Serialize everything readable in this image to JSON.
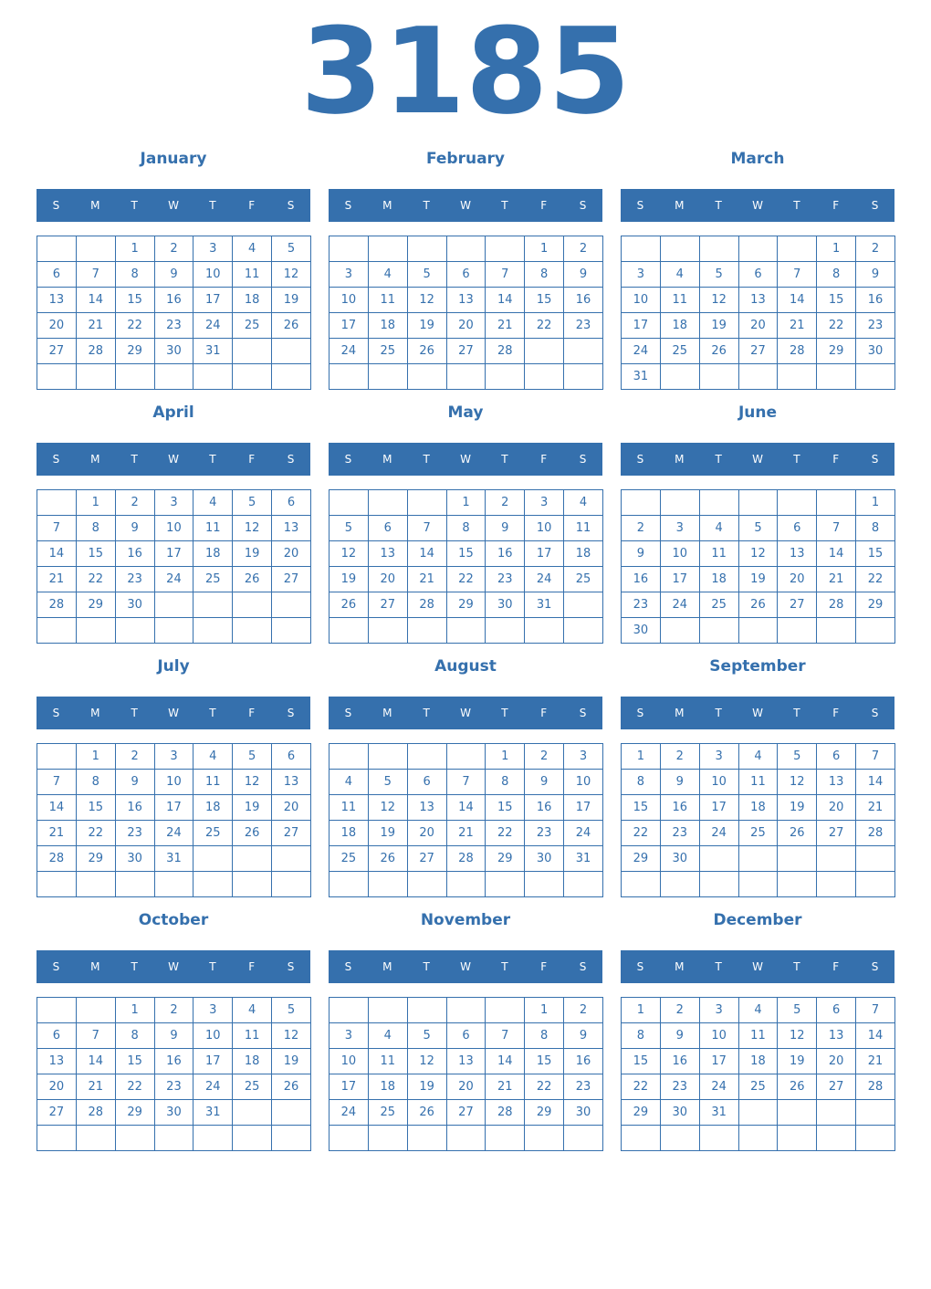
{
  "year": "3185",
  "weekdays": [
    "S",
    "M",
    "T",
    "W",
    "T",
    "F",
    "S"
  ],
  "colors": {
    "accent": "#3570ad"
  },
  "months": [
    {
      "name": "January",
      "weeks": [
        [
          null,
          null,
          1,
          2,
          3,
          4,
          5
        ],
        [
          6,
          7,
          8,
          9,
          10,
          11,
          12
        ],
        [
          13,
          14,
          15,
          16,
          17,
          18,
          19
        ],
        [
          20,
          21,
          22,
          23,
          24,
          25,
          26
        ],
        [
          27,
          28,
          29,
          30,
          31,
          null,
          null
        ],
        [
          null,
          null,
          null,
          null,
          null,
          null,
          null
        ]
      ]
    },
    {
      "name": "February",
      "weeks": [
        [
          null,
          null,
          null,
          null,
          null,
          1,
          2
        ],
        [
          3,
          4,
          5,
          6,
          7,
          8,
          9
        ],
        [
          10,
          11,
          12,
          13,
          14,
          15,
          16
        ],
        [
          17,
          18,
          19,
          20,
          21,
          22,
          23
        ],
        [
          24,
          25,
          26,
          27,
          28,
          null,
          null
        ],
        [
          null,
          null,
          null,
          null,
          null,
          null,
          null
        ]
      ]
    },
    {
      "name": "March",
      "weeks": [
        [
          null,
          null,
          null,
          null,
          null,
          1,
          2
        ],
        [
          3,
          4,
          5,
          6,
          7,
          8,
          9
        ],
        [
          10,
          11,
          12,
          13,
          14,
          15,
          16
        ],
        [
          17,
          18,
          19,
          20,
          21,
          22,
          23
        ],
        [
          24,
          25,
          26,
          27,
          28,
          29,
          30
        ],
        [
          31,
          null,
          null,
          null,
          null,
          null,
          null
        ]
      ]
    },
    {
      "name": "April",
      "weeks": [
        [
          null,
          1,
          2,
          3,
          4,
          5,
          6
        ],
        [
          7,
          8,
          9,
          10,
          11,
          12,
          13
        ],
        [
          14,
          15,
          16,
          17,
          18,
          19,
          20
        ],
        [
          21,
          22,
          23,
          24,
          25,
          26,
          27
        ],
        [
          28,
          29,
          30,
          null,
          null,
          null,
          null
        ],
        [
          null,
          null,
          null,
          null,
          null,
          null,
          null
        ]
      ]
    },
    {
      "name": "May",
      "weeks": [
        [
          null,
          null,
          null,
          1,
          2,
          3,
          4
        ],
        [
          5,
          6,
          7,
          8,
          9,
          10,
          11
        ],
        [
          12,
          13,
          14,
          15,
          16,
          17,
          18
        ],
        [
          19,
          20,
          21,
          22,
          23,
          24,
          25
        ],
        [
          26,
          27,
          28,
          29,
          30,
          31,
          null
        ],
        [
          null,
          null,
          null,
          null,
          null,
          null,
          null
        ]
      ]
    },
    {
      "name": "June",
      "weeks": [
        [
          null,
          null,
          null,
          null,
          null,
          null,
          1
        ],
        [
          2,
          3,
          4,
          5,
          6,
          7,
          8
        ],
        [
          9,
          10,
          11,
          12,
          13,
          14,
          15
        ],
        [
          16,
          17,
          18,
          19,
          20,
          21,
          22
        ],
        [
          23,
          24,
          25,
          26,
          27,
          28,
          29
        ],
        [
          30,
          null,
          null,
          null,
          null,
          null,
          null
        ]
      ]
    },
    {
      "name": "July",
      "weeks": [
        [
          null,
          1,
          2,
          3,
          4,
          5,
          6
        ],
        [
          7,
          8,
          9,
          10,
          11,
          12,
          13
        ],
        [
          14,
          15,
          16,
          17,
          18,
          19,
          20
        ],
        [
          21,
          22,
          23,
          24,
          25,
          26,
          27
        ],
        [
          28,
          29,
          30,
          31,
          null,
          null,
          null
        ],
        [
          null,
          null,
          null,
          null,
          null,
          null,
          null
        ]
      ]
    },
    {
      "name": "August",
      "weeks": [
        [
          null,
          null,
          null,
          null,
          1,
          2,
          3
        ],
        [
          4,
          5,
          6,
          7,
          8,
          9,
          10
        ],
        [
          11,
          12,
          13,
          14,
          15,
          16,
          17
        ],
        [
          18,
          19,
          20,
          21,
          22,
          23,
          24
        ],
        [
          25,
          26,
          27,
          28,
          29,
          30,
          31
        ],
        [
          null,
          null,
          null,
          null,
          null,
          null,
          null
        ]
      ]
    },
    {
      "name": "September",
      "weeks": [
        [
          1,
          2,
          3,
          4,
          5,
          6,
          7
        ],
        [
          8,
          9,
          10,
          11,
          12,
          13,
          14
        ],
        [
          15,
          16,
          17,
          18,
          19,
          20,
          21
        ],
        [
          22,
          23,
          24,
          25,
          26,
          27,
          28
        ],
        [
          29,
          30,
          null,
          null,
          null,
          null,
          null
        ],
        [
          null,
          null,
          null,
          null,
          null,
          null,
          null
        ]
      ]
    },
    {
      "name": "October",
      "weeks": [
        [
          null,
          null,
          1,
          2,
          3,
          4,
          5
        ],
        [
          6,
          7,
          8,
          9,
          10,
          11,
          12
        ],
        [
          13,
          14,
          15,
          16,
          17,
          18,
          19
        ],
        [
          20,
          21,
          22,
          23,
          24,
          25,
          26
        ],
        [
          27,
          28,
          29,
          30,
          31,
          null,
          null
        ],
        [
          null,
          null,
          null,
          null,
          null,
          null,
          null
        ]
      ]
    },
    {
      "name": "November",
      "weeks": [
        [
          null,
          null,
          null,
          null,
          null,
          1,
          2
        ],
        [
          3,
          4,
          5,
          6,
          7,
          8,
          9
        ],
        [
          10,
          11,
          12,
          13,
          14,
          15,
          16
        ],
        [
          17,
          18,
          19,
          20,
          21,
          22,
          23
        ],
        [
          24,
          25,
          26,
          27,
          28,
          29,
          30
        ],
        [
          null,
          null,
          null,
          null,
          null,
          null,
          null
        ]
      ]
    },
    {
      "name": "December",
      "weeks": [
        [
          1,
          2,
          3,
          4,
          5,
          6,
          7
        ],
        [
          8,
          9,
          10,
          11,
          12,
          13,
          14
        ],
        [
          15,
          16,
          17,
          18,
          19,
          20,
          21
        ],
        [
          22,
          23,
          24,
          25,
          26,
          27,
          28
        ],
        [
          29,
          30,
          31,
          null,
          null,
          null,
          null
        ],
        [
          null,
          null,
          null,
          null,
          null,
          null,
          null
        ]
      ]
    }
  ]
}
